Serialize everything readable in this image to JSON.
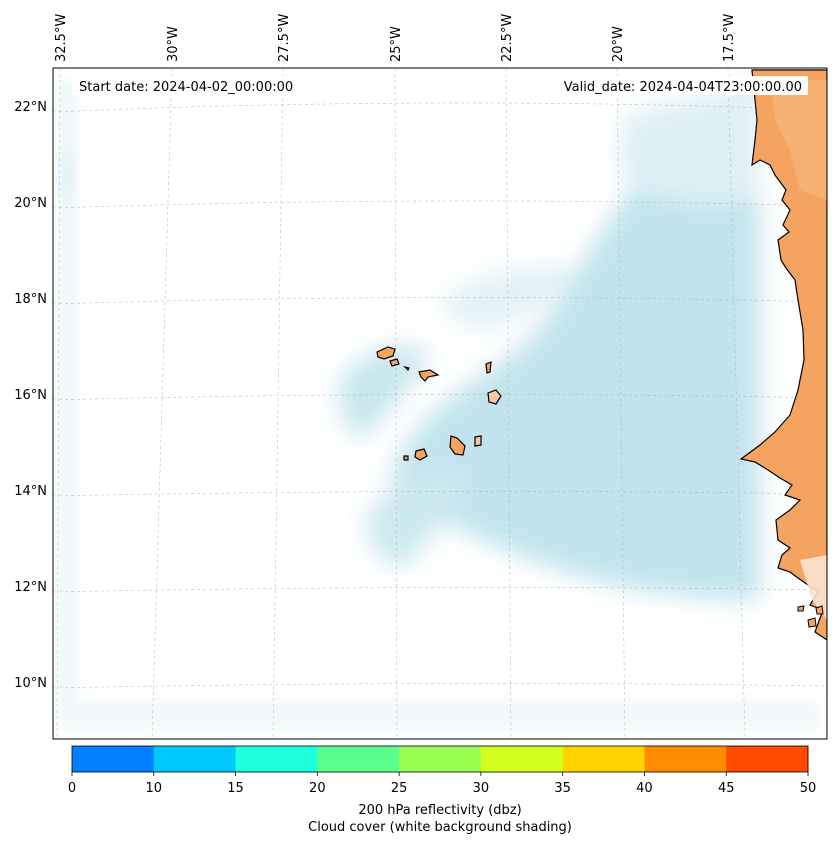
{
  "header": {
    "start_date": "Start date: 2024-04-02_00:00:00",
    "valid_date": "Valid_date: 2024-04-04T23:00:00.00"
  },
  "map": {
    "lon_labels": [
      "32.5°W",
      "30°W",
      "27.5°W",
      "25°W",
      "22.5°W",
      "20°W",
      "17.5°W"
    ],
    "lat_labels": [
      "22°N",
      "20°N",
      "18°N",
      "16°N",
      "14°N",
      "12°N",
      "10°N"
    ],
    "land_color": "#f4a460",
    "cloud_color": "#a8d8e6",
    "grid": "dashed"
  },
  "colorbar": {
    "label_line1": "200 hPa reflectivity (dbz)",
    "label_line2": "Cloud cover (white background shading)",
    "ticks": [
      "0",
      "10",
      "15",
      "20",
      "25",
      "30",
      "35",
      "40",
      "45",
      "50"
    ],
    "colors": [
      "#0080ff",
      "#00c8ff",
      "#1effdc",
      "#5aff8c",
      "#96ff50",
      "#d2ff1e",
      "#ffd200",
      "#ff8c00",
      "#ff4b00"
    ]
  }
}
